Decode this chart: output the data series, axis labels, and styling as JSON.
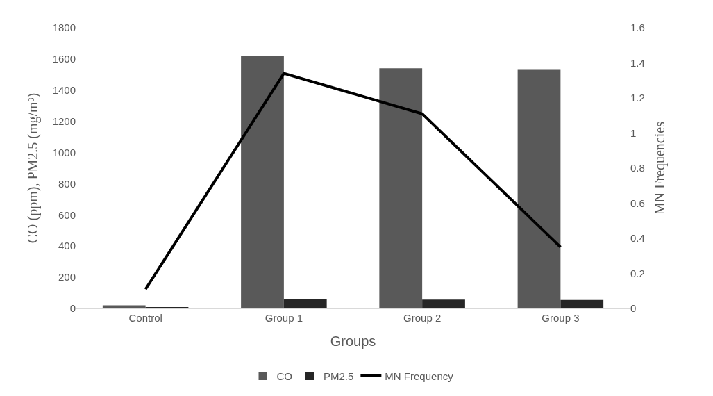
{
  "chart_data": {
    "type": "bar",
    "xlabel": "Groups",
    "ylabel": "CO (ppm), PM2.5 (mg/m³)",
    "y2label": "MN Frequencies",
    "categories": [
      "Control",
      "Group 1",
      "Group 2",
      "Group 3"
    ],
    "series": [
      {
        "name": "CO",
        "color": "#595959",
        "values": [
          20,
          1620,
          1540,
          1530
        ]
      },
      {
        "name": "PM2.5",
        "color": "#262626",
        "values": [
          5,
          60,
          57,
          55
        ]
      },
      {
        "name": "MN Frequency",
        "type": "line",
        "axis": "y2",
        "color": "#000000",
        "values": [
          0.11,
          1.34,
          1.11,
          0.35
        ]
      }
    ],
    "ylim": [
      0,
      1800
    ],
    "yticks": [
      0,
      200,
      400,
      600,
      800,
      1000,
      1200,
      1400,
      1600,
      1800
    ],
    "y2lim": [
      0,
      1.6
    ],
    "y2ticks": [
      0,
      0.2,
      0.4,
      0.6,
      0.8,
      1,
      1.2,
      1.4,
      1.6
    ],
    "grid": false,
    "legend": "bottom",
    "marker": "none",
    "line_style": "solid"
  }
}
